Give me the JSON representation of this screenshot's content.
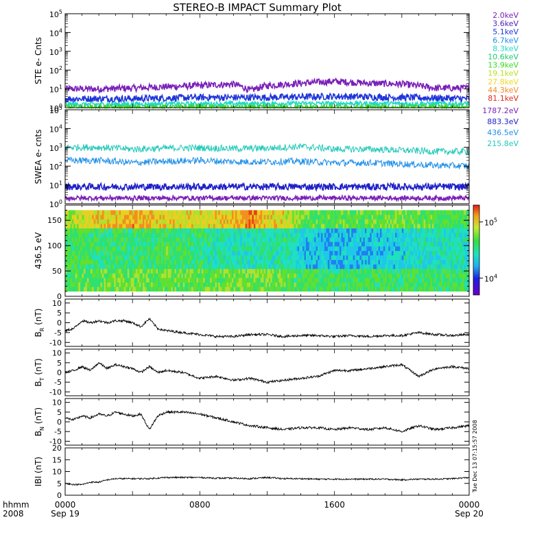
{
  "title": "STEREO-B IMPACT Summary Plot",
  "stamp": "Tue Dec 13 07:15:57 2008",
  "xaxis": {
    "row1_label": "hhmm",
    "row2_label": "2008",
    "ticks": [
      {
        "hour": 0,
        "time": "0000",
        "date": "Sep 19"
      },
      {
        "hour": 8,
        "time": "0800",
        "date": ""
      },
      {
        "hour": 16,
        "time": "1600",
        "date": ""
      },
      {
        "hour": 24,
        "time": "0000",
        "date": "Sep 20"
      }
    ],
    "range_hours": [
      0,
      24
    ]
  },
  "legend_ste": [
    {
      "label": "2.0keV",
      "color": "#7a1fb8"
    },
    {
      "label": "3.6keV",
      "color": "#4a1fb0"
    },
    {
      "label": "5.1keV",
      "color": "#1f35d8"
    },
    {
      "label": "6.7keV",
      "color": "#1f8fe8"
    },
    {
      "label": "8.3keV",
      "color": "#1fd8c8"
    },
    {
      "label": "10.6keV",
      "color": "#1fc870"
    },
    {
      "label": "13.9keV",
      "color": "#39d81f"
    },
    {
      "label": "19.1keV",
      "color": "#b8e01f"
    },
    {
      "label": "27.8keV",
      "color": "#f0d81f"
    },
    {
      "label": "44.3keV",
      "color": "#f08a1f"
    },
    {
      "label": "81.1keV",
      "color": "#e0281f"
    }
  ],
  "legend_swea": [
    {
      "label": "1787.2eV",
      "color": "#7a1fb8"
    },
    {
      "label": "883.3eV",
      "color": "#1f20c8"
    },
    {
      "label": "436.5eV",
      "color": "#1f8fe8"
    },
    {
      "label": "215.8eV",
      "color": "#1fc8b8"
    }
  ],
  "chart_data": [
    {
      "type": "line",
      "panel": "STE",
      "ylabel": "STE e- Cnts",
      "yscale": "log",
      "ylim": [
        1,
        100000
      ],
      "yticks": [
        {
          "b": "10",
          "e": "0"
        },
        {
          "b": "10",
          "e": "1"
        },
        {
          "b": "10",
          "e": "2"
        },
        {
          "b": "10",
          "e": "3"
        },
        {
          "b": "10",
          "e": "4"
        },
        {
          "b": "10",
          "e": "5"
        }
      ],
      "series": [
        {
          "name": "2.0keV",
          "color": "#7a1fb8",
          "x": [
            0,
            2,
            4,
            6,
            8,
            10,
            11,
            12,
            14,
            16,
            18,
            20,
            22,
            24
          ],
          "y": [
            10,
            10,
            11,
            13,
            15,
            18,
            8,
            15,
            20,
            25,
            20,
            18,
            11,
            11
          ]
        },
        {
          "name": "5.1keV",
          "color": "#1f35d8",
          "x": [
            0,
            4,
            8,
            12,
            16,
            20,
            24
          ],
          "y": [
            3,
            3,
            3.5,
            3.5,
            4,
            3.5,
            3
          ]
        },
        {
          "name": "8.3keV",
          "color": "#1fd8c8",
          "x": [
            0,
            8,
            16,
            24
          ],
          "y": [
            1.5,
            1.6,
            1.7,
            1.6
          ]
        },
        {
          "name": "13.9keV",
          "color": "#39d81f",
          "x": [
            0,
            24
          ],
          "y": [
            1.05,
            1.05
          ]
        }
      ]
    },
    {
      "type": "line",
      "panel": "SWEA",
      "ylabel": "SWEA e- cnts",
      "yscale": "log",
      "ylim": [
        1,
        100000
      ],
      "yticks": [
        {
          "b": "10",
          "e": "0"
        },
        {
          "b": "10",
          "e": "1"
        },
        {
          "b": "10",
          "e": "2"
        },
        {
          "b": "10",
          "e": "3"
        },
        {
          "b": "10",
          "e": "4"
        },
        {
          "b": "10",
          "e": "5"
        }
      ],
      "series": [
        {
          "name": "215.8eV",
          "color": "#1fc8b8",
          "x": [
            0,
            2,
            4,
            6,
            8,
            10,
            12,
            14,
            16,
            18,
            20,
            22,
            24
          ],
          "y": [
            1000,
            1000,
            800,
            900,
            950,
            850,
            900,
            1100,
            800,
            800,
            700,
            600,
            600
          ]
        },
        {
          "name": "436.5eV",
          "color": "#1f8fe8",
          "x": [
            0,
            2,
            4,
            6,
            8,
            10,
            12,
            14,
            16,
            18,
            20,
            22,
            24
          ],
          "y": [
            200,
            200,
            150,
            180,
            200,
            170,
            170,
            180,
            150,
            150,
            130,
            110,
            100
          ]
        },
        {
          "name": "883.3eV",
          "color": "#1f20c8",
          "x": [
            0,
            24
          ],
          "y": [
            8,
            8
          ]
        },
        {
          "name": "1787.2eV",
          "color": "#7a1fb8",
          "x": [
            0,
            24
          ],
          "y": [
            2,
            2
          ]
        }
      ]
    },
    {
      "type": "heatmap",
      "panel": "PAD",
      "ylabel": "436.5 eV",
      "ylim": [
        0,
        180
      ],
      "yticks": [
        0,
        50,
        100,
        150
      ],
      "colorbar": {
        "range": [
          5000,
          200000
        ],
        "ticks": [
          {
            "b": "10",
            "e": "4",
            "v": 10000
          },
          {
            "b": "10",
            "e": "5",
            "v": 100000
          }
        ]
      },
      "level_profile": {
        "hours": [
          0,
          2,
          4,
          6,
          8,
          10,
          11,
          13,
          14,
          16,
          18,
          20,
          22,
          24
        ],
        "middle": [
          0.5,
          0.45,
          0.45,
          0.5,
          0.42,
          0.35,
          0.35,
          0.4,
          0.28,
          0.25,
          0.25,
          0.3,
          0.35,
          0.35
        ],
        "top": [
          0.6,
          0.75,
          0.8,
          0.75,
          0.7,
          0.78,
          0.85,
          0.7,
          0.55,
          0.5,
          0.55,
          0.55,
          0.5,
          0.5
        ]
      }
    },
    {
      "type": "line",
      "panel": "BR",
      "ylabel": {
        "b": "B",
        "sub": "R",
        "unit": " (nT)"
      },
      "ylim": [
        -12,
        12
      ],
      "yticks": [
        -10,
        -5,
        0,
        5,
        10
      ],
      "x": [
        0,
        0.5,
        1,
        1.5,
        2,
        2.5,
        3,
        3.5,
        4,
        4.5,
        5,
        5.5,
        6,
        7,
        8,
        9,
        10,
        11,
        12,
        13,
        14,
        15,
        16,
        17,
        18,
        19,
        20,
        21,
        22,
        23,
        24
      ],
      "y": [
        -4,
        -3,
        1,
        0,
        1,
        0,
        1,
        1,
        0,
        -2,
        2,
        -3,
        -4,
        -5,
        -6,
        -7,
        -7,
        -6,
        -6,
        -7,
        -6.5,
        -6.5,
        -7,
        -6.5,
        -7,
        -6.5,
        -6.5,
        -5,
        -6,
        -6.5,
        -6
      ]
    },
    {
      "type": "line",
      "panel": "BT",
      "ylabel": {
        "b": "B",
        "sub": "T",
        "unit": " (nT)"
      },
      "ylim": [
        -12,
        12
      ],
      "yticks": [
        -10,
        -5,
        0,
        5,
        10
      ],
      "x": [
        0,
        0.5,
        1,
        1.5,
        2,
        2.5,
        3,
        3.5,
        4,
        4.5,
        5,
        5.5,
        6,
        7,
        8,
        9,
        10,
        11,
        12,
        13,
        14,
        15,
        16,
        17,
        18,
        19,
        20,
        21,
        22,
        23,
        24
      ],
      "y": [
        0,
        1,
        3,
        1,
        5,
        2,
        4,
        3,
        2,
        0,
        3,
        0,
        1,
        0,
        -3,
        -2,
        -4,
        -3,
        -5,
        -4,
        -3,
        -2,
        1,
        1,
        2,
        3,
        4,
        -2,
        2,
        3,
        2
      ]
    },
    {
      "type": "line",
      "panel": "BN",
      "ylabel": {
        "b": "B",
        "sub": "N",
        "unit": " (nT)"
      },
      "ylim": [
        -12,
        12
      ],
      "yticks": [
        -10,
        -5,
        0,
        5,
        10
      ],
      "x": [
        0,
        0.5,
        1,
        1.5,
        2,
        2.5,
        3,
        3.5,
        4,
        4.5,
        5,
        5.5,
        6,
        7,
        8,
        9,
        10,
        11,
        12,
        13,
        14,
        15,
        16,
        17,
        18,
        19,
        20,
        21,
        22,
        23,
        24
      ],
      "y": [
        2,
        1,
        3,
        2,
        4,
        3,
        5,
        4,
        3,
        4,
        -4,
        3,
        5,
        5,
        4,
        2,
        0,
        -2,
        -3,
        -4,
        -3,
        -3,
        -4,
        -3,
        -4,
        -3,
        -5,
        -2,
        -4,
        -3,
        -2
      ]
    },
    {
      "type": "line",
      "panel": "B",
      "ylabel": {
        "b": "IBI",
        "sub": "",
        "unit": " (nT)"
      },
      "ylim": [
        0,
        20
      ],
      "yticks": [
        0,
        5,
        10,
        15,
        20
      ],
      "x": [
        0,
        0.5,
        1,
        1.5,
        2,
        2.5,
        3,
        4,
        5,
        6,
        7,
        8,
        9,
        10,
        11,
        12,
        13,
        14,
        15,
        16,
        17,
        18,
        19,
        20,
        21,
        22,
        23,
        24
      ],
      "y": [
        5,
        4.5,
        4.5,
        5.5,
        5.5,
        6.5,
        7,
        7,
        7,
        7.5,
        7.5,
        7.5,
        7.2,
        7.2,
        7,
        7.5,
        7,
        7,
        6.8,
        6.8,
        6.8,
        6.8,
        6.8,
        6.5,
        6.8,
        6.8,
        7,
        7.5
      ]
    }
  ]
}
